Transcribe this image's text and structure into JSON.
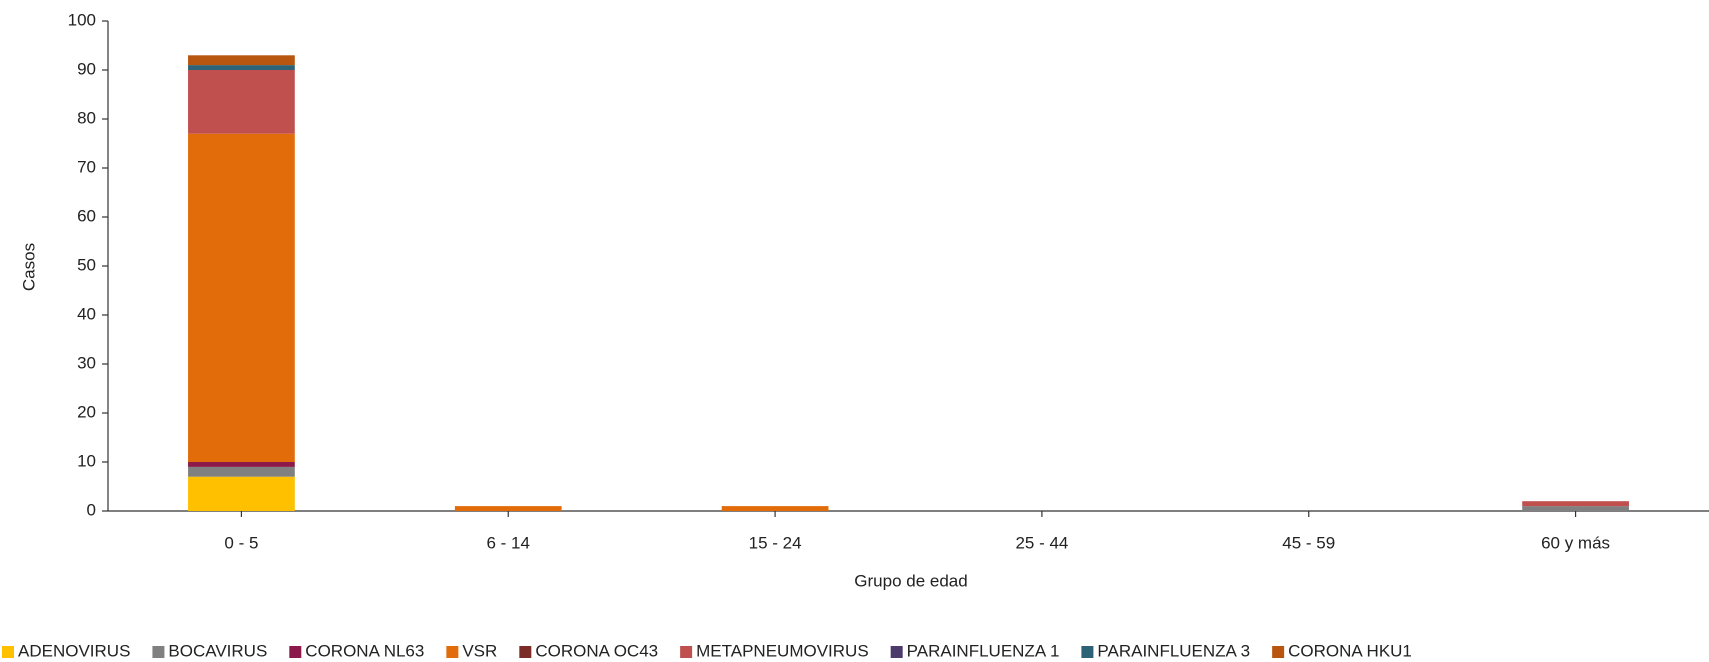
{
  "chart_data": {
    "type": "bar",
    "stacked": true,
    "x_label": "Grupo de edad",
    "y_label": "Casos",
    "categories": [
      "0 - 5",
      "6 - 14",
      "15 - 24",
      "25 - 44",
      "45 - 59",
      "60 y más"
    ],
    "series": [
      {
        "name": "ADENOVIRUS",
        "color": "#ffc000",
        "values": [
          7,
          0,
          0,
          0,
          0,
          0
        ]
      },
      {
        "name": "BOCAVIRUS",
        "color": "#808080",
        "values": [
          2,
          0,
          0,
          0,
          0,
          1
        ]
      },
      {
        "name": "CORONA NL63",
        "color": "#8b1a4a",
        "values": [
          1,
          0,
          0,
          0,
          0,
          0
        ]
      },
      {
        "name": "VSR",
        "color": "#e36c0a",
        "values": [
          67,
          1,
          1,
          0,
          0,
          0
        ]
      },
      {
        "name": "CORONA OC43",
        "color": "#7b2c26",
        "values": [
          0,
          0,
          0,
          0,
          0,
          0
        ]
      },
      {
        "name": "METAPNEUMOVIRUS",
        "color": "#c0504d",
        "values": [
          13,
          0,
          0,
          0,
          0,
          1
        ]
      },
      {
        "name": "PARAINFLUENZA 1",
        "color": "#4b3a6b",
        "values": [
          0,
          0,
          0,
          0,
          0,
          0
        ]
      },
      {
        "name": "PARAINFLUENZA 3",
        "color": "#2e6377",
        "values": [
          1,
          0,
          0,
          0,
          0,
          0
        ]
      },
      {
        "name": "CORONA HKU1",
        "color": "#b8560f",
        "values": [
          2,
          0,
          0,
          0,
          0,
          0
        ]
      }
    ],
    "ylim": [
      0,
      100
    ],
    "yticks": [
      0,
      10,
      20,
      30,
      40,
      50,
      60,
      70,
      80,
      90,
      100
    ],
    "grid": false,
    "legend": "bottom"
  }
}
